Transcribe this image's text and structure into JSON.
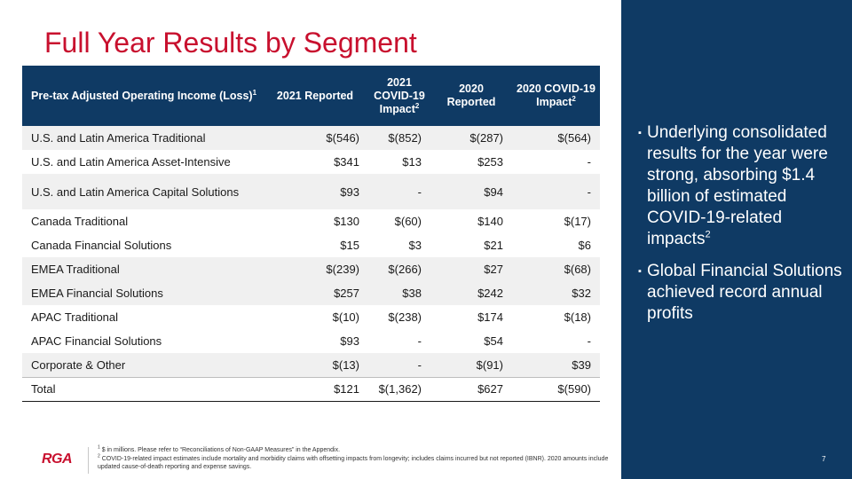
{
  "title": "Full Year Results by Segment",
  "table": {
    "headers": {
      "segment": "Pre-tax Adjusted Operating Income (Loss)",
      "segment_sup": "1",
      "c2021_reported": "2021 Reported",
      "c2021_covid": "2021 COVID-19 Impact",
      "c2021_covid_sup": "2",
      "c2020_reported": "2020 Reported",
      "c2020_covid": "2020 COVID-19 Impact",
      "c2020_covid_sup": "2"
    },
    "rows": [
      {
        "segment": "U.S. and Latin America Traditional",
        "r2021": "$(546)",
        "c2021": "$(852)",
        "r2020": "$(287)",
        "c2020": "$(564)"
      },
      {
        "segment": "U.S. and Latin America Asset-Intensive",
        "r2021": "$341",
        "c2021": "$13",
        "r2020": "$253",
        "c2020": "-"
      },
      {
        "segment": "U.S. and Latin America Capital Solutions",
        "r2021": "$93",
        "c2021": "-",
        "r2020": "$94",
        "c2020": "-"
      },
      {
        "segment": "Canada Traditional",
        "r2021": "$130",
        "c2021": "$(60)",
        "r2020": "$140",
        "c2020": "$(17)"
      },
      {
        "segment": "Canada Financial Solutions",
        "r2021": "$15",
        "c2021": "$3",
        "r2020": "$21",
        "c2020": "$6"
      },
      {
        "segment": "EMEA Traditional",
        "r2021": "$(239)",
        "c2021": "$(266)",
        "r2020": "$27",
        "c2020": "$(68)"
      },
      {
        "segment": "EMEA Financial Solutions",
        "r2021": "$257",
        "c2021": "$38",
        "r2020": "$242",
        "c2020": "$32"
      },
      {
        "segment": "APAC Traditional",
        "r2021": "$(10)",
        "c2021": "$(238)",
        "r2020": "$174",
        "c2020": "$(18)"
      },
      {
        "segment": "APAC Financial Solutions",
        "r2021": "$93",
        "c2021": "-",
        "r2020": "$54",
        "c2020": "-"
      },
      {
        "segment": "Corporate & Other",
        "r2021": "$(13)",
        "c2021": "-",
        "r2020": "$(91)",
        "c2020": "$39"
      },
      {
        "segment": "Total",
        "r2021": "$121",
        "c2021": "$(1,362)",
        "r2020": "$627",
        "c2020": "$(590)"
      }
    ]
  },
  "bullets": [
    {
      "text": "Underlying consolidated results for the year were strong, absorbing $1.4 billion of estimated COVID-19-related impacts",
      "sup": "2"
    },
    {
      "text": "Global Financial Solutions achieved record annual profits",
      "sup": ""
    }
  ],
  "bullet_marker": "▪",
  "footer": {
    "logo": "RGA",
    "footnote1_sup": "1",
    "footnote1": " $ in millions. Please refer to “Reconciliations of Non-GAAP Measures” in the Appendix.",
    "footnote2_sup": "2",
    "footnote2": " COVID-19-related impact estimates include mortality and morbidity claims with offsetting impacts from longevity; includes claims incurred but not reported (IBNR). 2020 amounts include updated cause-of-death reporting and expense savings.",
    "page_number": "7"
  },
  "colors": {
    "title_red": "#c8102e",
    "header_navy": "#0f3a64",
    "row_shade": "#f0f0f0"
  }
}
